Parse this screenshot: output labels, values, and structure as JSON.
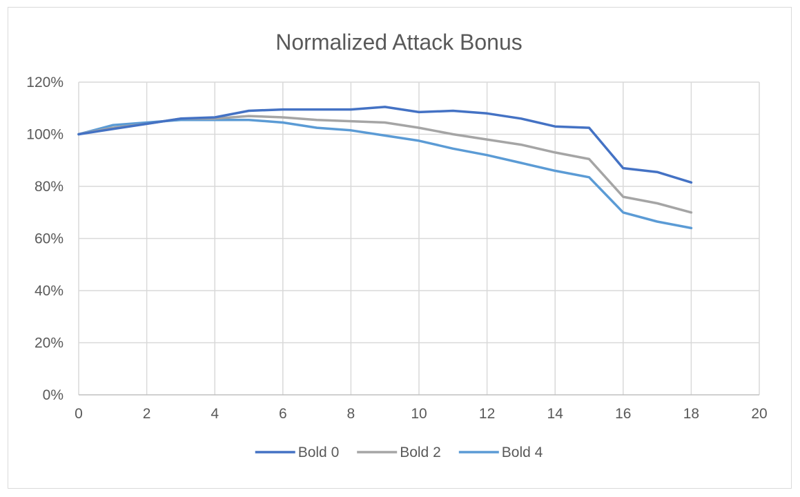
{
  "chart_data": {
    "type": "line",
    "title": "Normalized Attack Bonus",
    "xlabel": "",
    "ylabel": "",
    "xlim": [
      0,
      20
    ],
    "ylim": [
      0,
      1.2
    ],
    "x_ticks": [
      0,
      2,
      4,
      6,
      8,
      10,
      12,
      14,
      16,
      18,
      20
    ],
    "x_tick_labels": [
      "0",
      "2",
      "4",
      "6",
      "8",
      "10",
      "12",
      "14",
      "16",
      "18",
      "20"
    ],
    "y_ticks": [
      0,
      0.2,
      0.4,
      0.6,
      0.8,
      1.0,
      1.2
    ],
    "y_tick_labels": [
      "0%",
      "20%",
      "40%",
      "60%",
      "80%",
      "100%",
      "120%"
    ],
    "grid": {
      "vertical": true,
      "horizontal": true
    },
    "legend_position": "bottom",
    "x": [
      0,
      1,
      2,
      3,
      4,
      5,
      6,
      7,
      8,
      9,
      10,
      11,
      12,
      13,
      14,
      15,
      16,
      17,
      18
    ],
    "series": [
      {
        "name": "Bold 0",
        "color": "#4472c4",
        "values": [
          1.0,
          1.02,
          1.04,
          1.06,
          1.065,
          1.09,
          1.095,
          1.095,
          1.095,
          1.105,
          1.085,
          1.09,
          1.08,
          1.06,
          1.03,
          1.025,
          0.87,
          0.855,
          0.815
        ]
      },
      {
        "name": "Bold 2",
        "color": "#a5a5a5",
        "values": [
          1.0,
          1.025,
          1.04,
          1.06,
          1.06,
          1.07,
          1.065,
          1.055,
          1.05,
          1.045,
          1.025,
          1.0,
          0.98,
          0.96,
          0.93,
          0.905,
          0.76,
          0.735,
          0.7
        ]
      },
      {
        "name": "Bold 4",
        "color": "#5b9bd5",
        "values": [
          1.0,
          1.035,
          1.045,
          1.055,
          1.055,
          1.055,
          1.045,
          1.025,
          1.015,
          0.995,
          0.975,
          0.945,
          0.92,
          0.89,
          0.86,
          0.835,
          0.7,
          0.665,
          0.64
        ]
      }
    ]
  }
}
